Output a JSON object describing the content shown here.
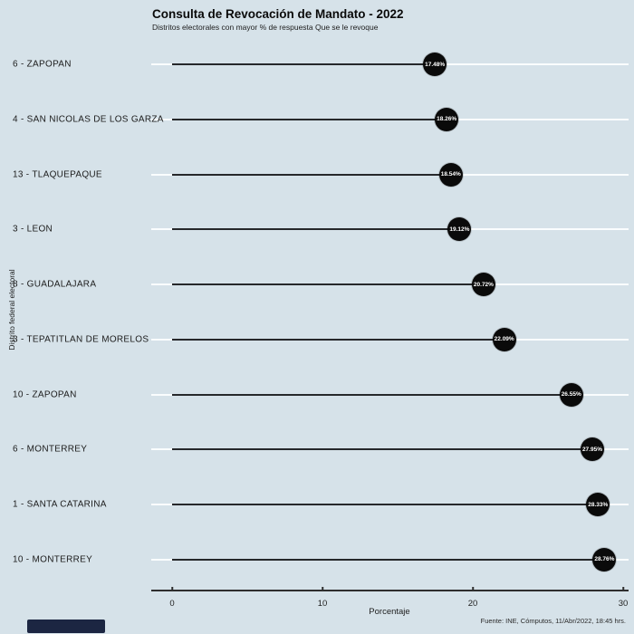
{
  "header": {
    "title": "Consulta de Revocación de Mandato - 2022",
    "subtitle": "Distritos electorales con mayor % de respuesta Que se le revoque"
  },
  "axes": {
    "xlabel": "Porcentaje",
    "ylabel": "Distrito federal electoral"
  },
  "footer": {
    "source": "Fuente: INE, Cómputos, 11/Abr/2022, 18:45 hrs."
  },
  "chart_data": {
    "type": "scatter",
    "variant": "lollipop-dot-plot",
    "title": "Consulta de Revocación de Mandato - 2022",
    "subtitle": "Distritos electorales con mayor % de respuesta Que se le revoque",
    "xlabel": "Porcentaje",
    "ylabel": "Distrito federal electoral",
    "xlim": [
      0,
      30
    ],
    "xticks": [
      0,
      10,
      20,
      30
    ],
    "grid": "horizontal-white-gridlines",
    "legend": "none",
    "categories": [
      "6 - ZAPOPAN",
      "4 - SAN NICOLAS DE LOS GARZA",
      "13 - TLAQUEPAQUE",
      "3 - LEON",
      "8 - GUADALAJARA",
      "3 - TEPATITLAN DE MORELOS",
      "10 - ZAPOPAN",
      "6 - MONTERREY",
      "1 - SANTA CATARINA",
      "10 - MONTERREY"
    ],
    "values": [
      17.48,
      18.26,
      18.54,
      19.12,
      20.72,
      22.09,
      26.55,
      27.95,
      28.33,
      28.76
    ],
    "value_labels": [
      "17.48%",
      "18.26%",
      "18.54%",
      "19.12%",
      "20.72%",
      "22.09%",
      "26.55%",
      "27.95%",
      "28.33%",
      "28.76%"
    ]
  },
  "colors": {
    "background": "#d6e2e9",
    "dot_fill": "#0a0a0a",
    "dot_text": "#ffffff",
    "stem": "#26282b",
    "gridline": "#fafdfe",
    "axis": "#2e2e2e",
    "text": "#1c1c1c",
    "corner_block": "#1c2642"
  }
}
